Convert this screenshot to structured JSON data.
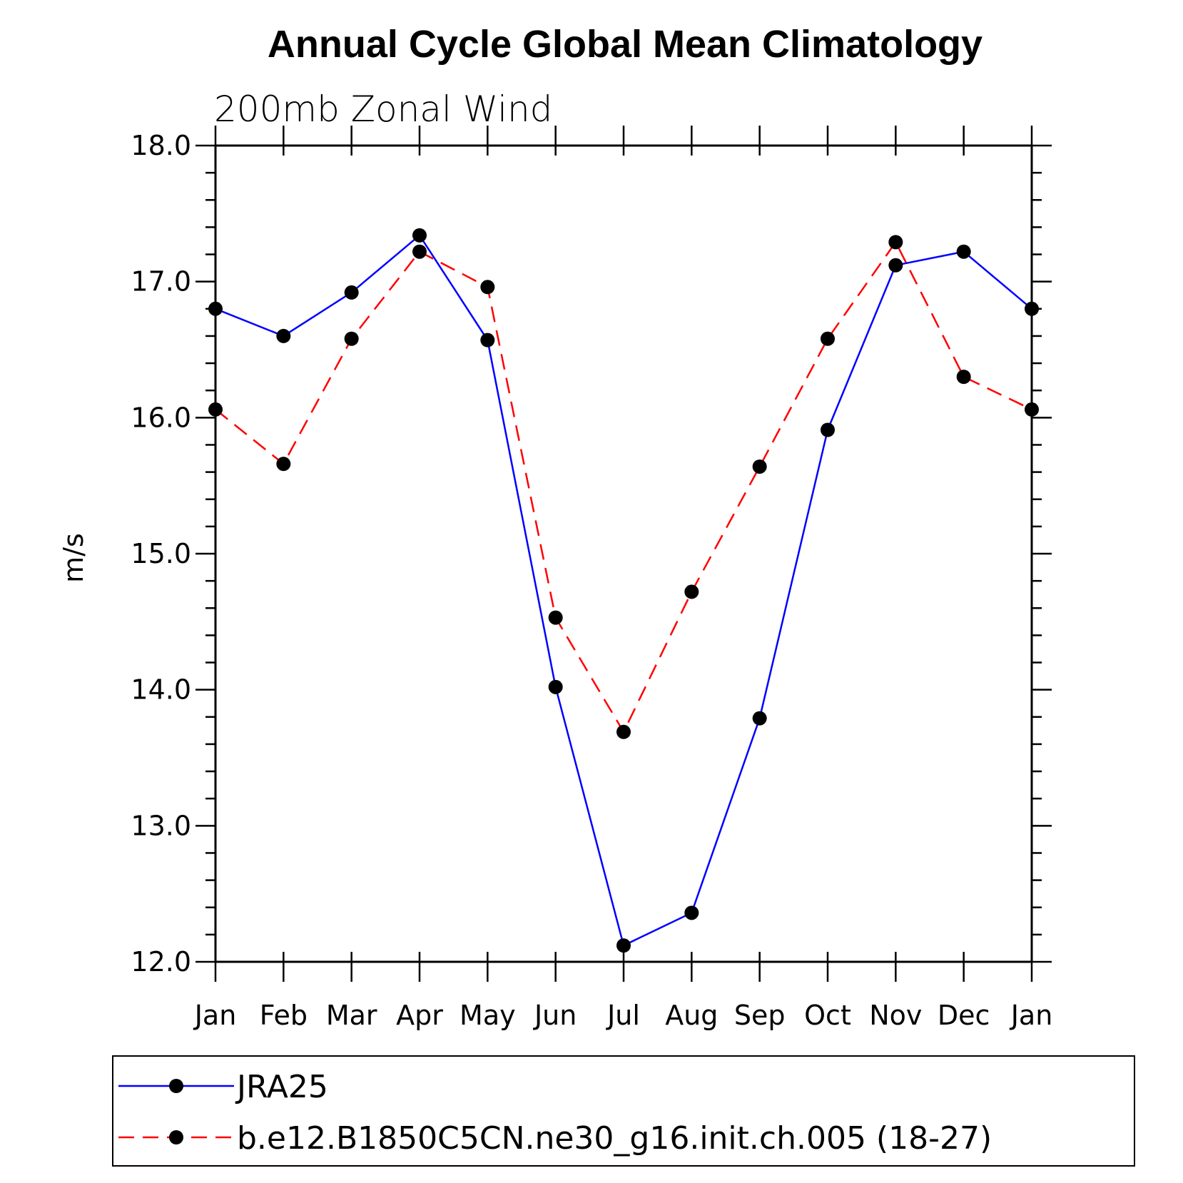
{
  "chart_data": {
    "type": "line",
    "title": "Annual Cycle Global Mean Climatology",
    "subtitle": "200mb Zonal Wind",
    "ylabel": "m/s",
    "xlabel": "",
    "ylim": [
      12.0,
      18.0
    ],
    "yticks": [
      "12.0",
      "13.0",
      "14.0",
      "15.0",
      "16.0",
      "17.0",
      "18.0"
    ],
    "categories": [
      "Jan",
      "Feb",
      "Mar",
      "Apr",
      "May",
      "Jun",
      "Jul",
      "Aug",
      "Sep",
      "Oct",
      "Nov",
      "Dec",
      "Jan"
    ],
    "series": [
      {
        "name": "JRA25",
        "color": "#0000ff",
        "style": "solid",
        "values": [
          16.8,
          16.6,
          16.92,
          17.34,
          16.57,
          14.02,
          12.12,
          12.36,
          13.79,
          15.91,
          17.12,
          17.22,
          16.8
        ]
      },
      {
        "name": "b.e12.B1850C5CN.ne30_g16.init.ch.005 (18-27)",
        "color": "#ff0000",
        "style": "dashed",
        "values": [
          16.06,
          15.66,
          16.58,
          17.22,
          16.96,
          14.53,
          13.69,
          14.72,
          15.64,
          16.58,
          17.29,
          16.3,
          16.06
        ]
      }
    ],
    "legend_position": "bottom"
  }
}
